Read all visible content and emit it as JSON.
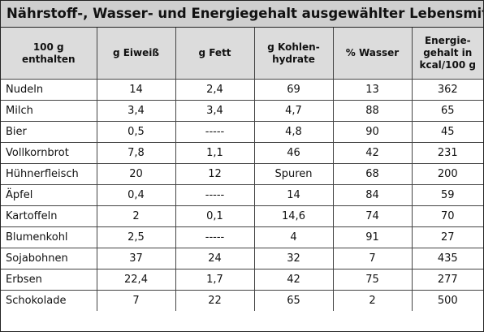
{
  "title": "Nährstoff-, Wasser- und Energiegehalt ausgewählter Lebensmittel",
  "headers": {
    "c0": [
      "100 g",
      "enthalten"
    ],
    "c1": [
      "g Eiweiß"
    ],
    "c2": [
      "g Fett"
    ],
    "c3": [
      "g Kohlen-",
      "hydrate"
    ],
    "c4": [
      "% Wasser"
    ],
    "c5": [
      "Energie-",
      "gehalt in",
      "kcal/100 g"
    ]
  },
  "rows": [
    {
      "name": "Nudeln",
      "eiweiss": "14",
      "fett": "2,4",
      "kh": "69",
      "wasser": "13",
      "kcal": "362"
    },
    {
      "name": "Milch",
      "eiweiss": "3,4",
      "fett": "3,4",
      "kh": "4,7",
      "wasser": "88",
      "kcal": "65"
    },
    {
      "name": "Bier",
      "eiweiss": "0,5",
      "fett": "-----",
      "kh": "4,8",
      "wasser": "90",
      "kcal": "45"
    },
    {
      "name": "Vollkornbrot",
      "eiweiss": "7,8",
      "fett": "1,1",
      "kh": "46",
      "wasser": "42",
      "kcal": "231"
    },
    {
      "name": "Hühnerfleisch",
      "eiweiss": "20",
      "fett": "12",
      "kh": "Spuren",
      "wasser": "68",
      "kcal": "200"
    },
    {
      "name": "Äpfel",
      "eiweiss": "0,4",
      "fett": "-----",
      "kh": "14",
      "wasser": "84",
      "kcal": "59"
    },
    {
      "name": "Kartoffeln",
      "eiweiss": "2",
      "fett": "0,1",
      "kh": "14,6",
      "wasser": "74",
      "kcal": "70"
    },
    {
      "name": "Blumenkohl",
      "eiweiss": "2,5",
      "fett": "-----",
      "kh": "4",
      "wasser": "91",
      "kcal": "27"
    },
    {
      "name": "Sojabohnen",
      "eiweiss": "37",
      "fett": "24",
      "kh": "32",
      "wasser": "7",
      "kcal": "435"
    },
    {
      "name": "Erbsen",
      "eiweiss": "22,4",
      "fett": "1,7",
      "kh": "42",
      "wasser": "75",
      "kcal": "277"
    },
    {
      "name": "Schokolade",
      "eiweiss": "7",
      "fett": "22",
      "kh": "65",
      "wasser": "2",
      "kcal": "500"
    }
  ]
}
